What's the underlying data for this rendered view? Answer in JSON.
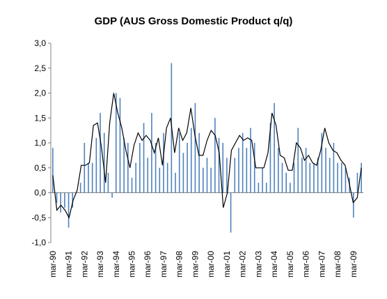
{
  "chart_data": {
    "type": "bar",
    "title": "GDP (AUS Gross Domestic Product q/q)",
    "xlabel": "",
    "ylabel": "",
    "ylim": [
      -1.0,
      3.0
    ],
    "yticks": [
      "3,0",
      "2,5",
      "2,0",
      "1,5",
      "1,0",
      "0,5",
      "0,0",
      "-0,5",
      "-1,0"
    ],
    "xtick_labels": [
      "mar-90",
      "mar-91",
      "mar-92",
      "mar-93",
      "mar-94",
      "mar-95",
      "mar-96",
      "mar-97",
      "mar-98",
      "mar-99",
      "mar-00",
      "mar-01",
      "mar-02",
      "mar-03",
      "mar-04",
      "mar-05",
      "mar-06",
      "mar-07",
      "mar-08",
      "mar-09"
    ],
    "grid": false,
    "legend": "none",
    "colors": {
      "bars": "#4f81bd",
      "line": "#000000",
      "axis": "#808080"
    },
    "series": [
      {
        "type": "bar",
        "values": [
          0.9,
          -0.2,
          -0.4,
          -0.3,
          -0.7,
          -0.3,
          0.0,
          0.2,
          1.0,
          0.6,
          0.6,
          1.1,
          1.6,
          1.2,
          0.4,
          -0.1,
          2.0,
          1.9,
          1.1,
          1.0,
          0.3,
          0.6,
          1.0,
          1.4,
          0.7,
          1.6,
          1.0,
          0.5,
          1.2,
          0.6,
          2.6,
          0.4,
          1.2,
          0.8,
          1.0,
          1.3,
          1.8,
          1.2,
          0.5,
          0.7,
          0.5,
          1.5,
          1.1,
          1.0,
          0.7,
          -0.8,
          0.7,
          0.9,
          1.2,
          0.9,
          1.3,
          1.0,
          0.2,
          0.5,
          0.2,
          1.4,
          1.8,
          0.9,
          0.6,
          0.4,
          0.2,
          0.6,
          1.3,
          0.7,
          0.9,
          0.6,
          0.6,
          0.7,
          1.2,
          0.9,
          0.7,
          1.0,
          0.6,
          0.6,
          0.5,
          0.3,
          -0.5,
          0.4,
          0.6
        ]
      },
      {
        "type": "line",
        "values": [
          0.35,
          -0.35,
          -0.25,
          -0.35,
          -0.5,
          -0.15,
          0.05,
          0.55,
          0.55,
          0.6,
          1.35,
          1.4,
          0.9,
          0.2,
          1.4,
          2.0,
          1.6,
          1.3,
          0.85,
          0.5,
          0.95,
          1.2,
          1.05,
          1.15,
          1.05,
          0.8,
          1.1,
          0.55,
          1.3,
          1.5,
          0.8,
          1.3,
          1.05,
          1.2,
          1.7,
          1.15,
          0.75,
          0.75,
          1.05,
          1.25,
          1.15,
          0.8,
          -0.3,
          0.0,
          0.85,
          1.0,
          1.15,
          1.05,
          1.1,
          1.05,
          0.5,
          0.5,
          0.5,
          0.8,
          1.6,
          1.35,
          0.75,
          0.7,
          0.45,
          0.45,
          1.0,
          0.9,
          0.65,
          0.75,
          0.6,
          0.55,
          0.85,
          1.3,
          1.0,
          0.85,
          0.8,
          0.65,
          0.55,
          0.2,
          -0.2,
          -0.1,
          0.5
        ]
      }
    ]
  }
}
